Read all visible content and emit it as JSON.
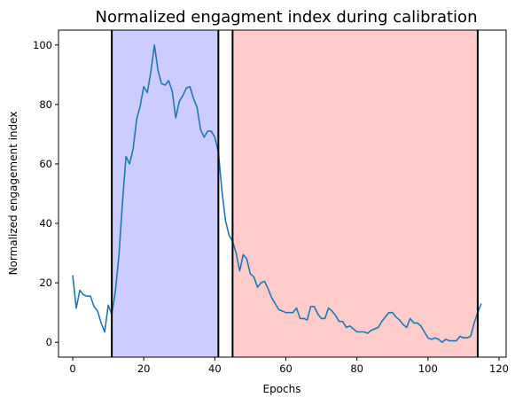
{
  "chart_data": {
    "type": "line",
    "title": "Normalized engagment index during calibration",
    "xlabel": "Epochs",
    "ylabel": "Normalized engagement index",
    "xlim": [
      -4,
      122
    ],
    "ylim": [
      -5,
      105
    ],
    "xticks": [
      0,
      20,
      40,
      60,
      80,
      100,
      120
    ],
    "yticks": [
      0,
      20,
      40,
      60,
      80,
      100
    ],
    "grid": false,
    "line_color": "#1f77b4",
    "regions": [
      {
        "x0": 11,
        "x1": 41,
        "color": "#0000ff",
        "alpha": 0.2
      },
      {
        "x0": 45,
        "x1": 114,
        "color": "#ff0000",
        "alpha": 0.2
      }
    ],
    "vlines": [
      11,
      41,
      45,
      114
    ],
    "series": [
      {
        "x": [
          0,
          1,
          2,
          3,
          4,
          5,
          6,
          7,
          8,
          9,
          10,
          11,
          12,
          13,
          14,
          15,
          16,
          17,
          18,
          19,
          20,
          21,
          22,
          23,
          24,
          25,
          26,
          27,
          28,
          29,
          30,
          31,
          32,
          33,
          34,
          35,
          36,
          37,
          38,
          39,
          40,
          41,
          42,
          43,
          44,
          45,
          46,
          47,
          48,
          49,
          50,
          51,
          52,
          53,
          54,
          55,
          56,
          57,
          58,
          59,
          60,
          61,
          62,
          63,
          64,
          65,
          66,
          67,
          68,
          69,
          70,
          71,
          72,
          73,
          74,
          75,
          76,
          77,
          78,
          79,
          80,
          81,
          82,
          83,
          84,
          85,
          86,
          87,
          88,
          89,
          90,
          91,
          92,
          93,
          94,
          95,
          96,
          97,
          98,
          99,
          100,
          101,
          102,
          103,
          104,
          105,
          106,
          107,
          108,
          109,
          110,
          111,
          112,
          113,
          114,
          115
        ],
        "values": [
          22.5,
          11.5,
          17.5,
          16,
          15.5,
          15.5,
          12,
          10.5,
          6.5,
          3.5,
          12.5,
          9.5,
          17,
          29,
          47,
          62.5,
          60,
          65,
          75,
          79.5,
          86,
          84,
          91,
          100,
          91.5,
          87,
          86.5,
          88,
          84.5,
          75.5,
          81,
          83,
          85.5,
          86,
          82,
          79,
          71.5,
          69,
          71,
          71,
          69,
          64,
          51,
          41,
          36,
          34,
          30,
          24,
          29.5,
          28,
          23,
          22,
          18.5,
          20,
          20.5,
          18,
          15,
          13,
          11,
          10.5,
          10,
          10,
          10,
          11.5,
          8,
          8,
          7.5,
          12,
          12,
          9.5,
          8,
          8,
          11.5,
          10.5,
          9,
          7,
          7,
          5,
          5.5,
          4.5,
          3.5,
          3.5,
          3.5,
          3,
          4,
          4.5,
          5,
          7,
          8.5,
          10,
          10,
          8.5,
          7.5,
          6,
          5,
          8,
          6.5,
          6.5,
          5.5,
          3.5,
          1.5,
          1,
          1.5,
          1,
          0,
          1,
          0.5,
          0.5,
          0.5,
          2,
          1.5,
          1.5,
          2,
          6.5,
          10,
          13
        ]
      }
    ]
  }
}
